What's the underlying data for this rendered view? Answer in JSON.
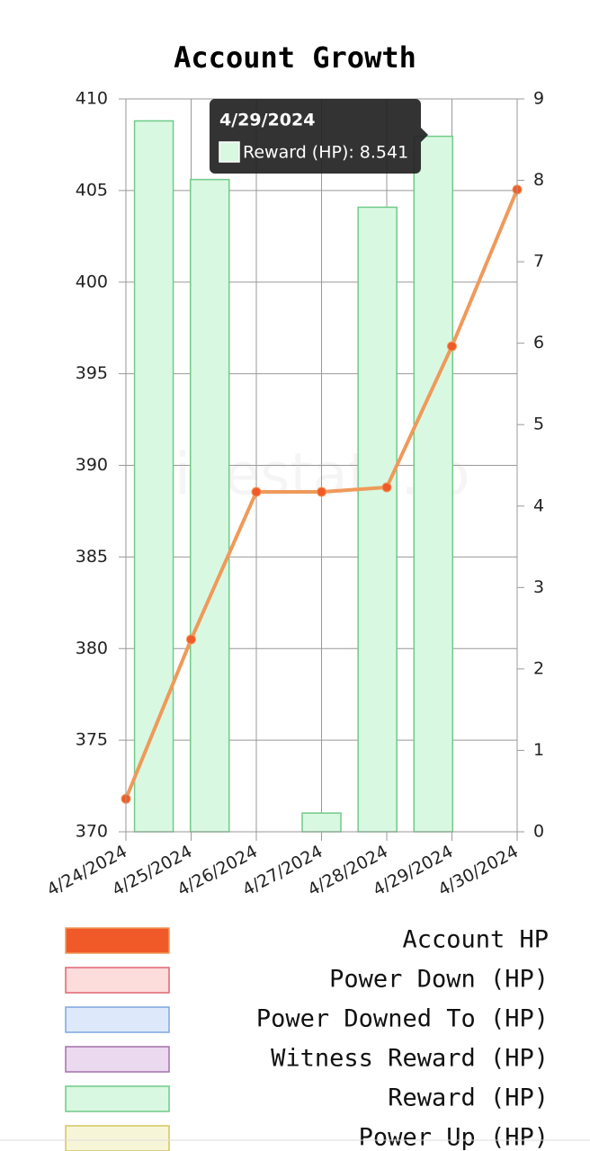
{
  "chart_data": {
    "type": "bar-line",
    "title": "Account Growth",
    "watermark": "hivestats.io",
    "categories": [
      "4/24/2024",
      "4/25/2024",
      "4/26/2024",
      "4/27/2024",
      "4/28/2024",
      "4/29/2024",
      "4/30/2024"
    ],
    "ylim": [
      370,
      410
    ],
    "yticks": [
      370,
      375,
      380,
      385,
      390,
      395,
      400,
      405,
      410
    ],
    "y2lim": [
      0,
      9
    ],
    "y2ticks": [
      0,
      1,
      2,
      3,
      4,
      5,
      6,
      7,
      8,
      9
    ],
    "grid": true,
    "series": [
      {
        "name": "Account HP",
        "type": "line",
        "color": "#f05a28",
        "line_color": "#ef9a5a",
        "values": [
          371.8,
          380.5,
          388.55,
          388.55,
          388.8,
          396.5,
          405.05
        ]
      },
      {
        "name": "Power Down (HP)",
        "color": "#fddcdc",
        "border_color": "#e06470"
      },
      {
        "name": "Power Downed To (HP)",
        "color": "#dde9fb",
        "border_color": "#7fa6e0"
      },
      {
        "name": "Witness Reward (HP)",
        "color": "#ead9ef",
        "border_color": "#a470ab"
      },
      {
        "name": "Reward (HP)",
        "type": "bar",
        "axis": "y2",
        "color": "#d9f8e1",
        "border_color": "#6fcb89",
        "values": [
          8.73,
          8.01,
          null,
          0.23,
          7.67,
          8.541,
          null
        ]
      },
      {
        "name": "Power Up (HP)",
        "color": "#f7f5d8",
        "border_color": "#d4c55e"
      }
    ],
    "tooltip": {
      "title": "4/29/2024",
      "text": "Reward (HP): 8.541"
    }
  }
}
